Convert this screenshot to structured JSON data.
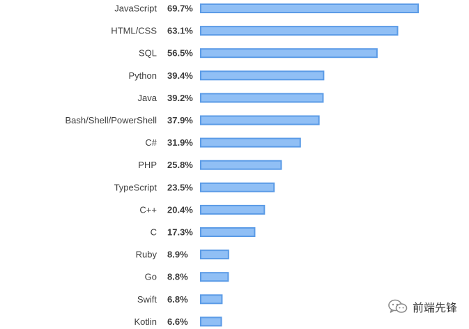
{
  "chart_data": {
    "type": "bar",
    "orientation": "horizontal",
    "categories": [
      "JavaScript",
      "HTML/CSS",
      "SQL",
      "Python",
      "Java",
      "Bash/Shell/PowerShell",
      "C#",
      "PHP",
      "TypeScript",
      "C++",
      "C",
      "Ruby",
      "Go",
      "Swift",
      "Kotlin"
    ],
    "values": [
      69.7,
      63.1,
      56.5,
      39.4,
      39.2,
      37.9,
      31.9,
      25.8,
      23.5,
      20.4,
      17.3,
      8.9,
      8.8,
      6.8,
      6.6
    ],
    "value_labels": [
      "69.7%",
      "63.1%",
      "56.5%",
      "39.4%",
      "39.2%",
      "37.9%",
      "31.9%",
      "25.8%",
      "23.5%",
      "20.4%",
      "17.3%",
      "8.9%",
      "8.8%",
      "6.8%",
      "6.6%"
    ],
    "title": "",
    "xlabel": "",
    "ylabel": "",
    "xlim": [
      0,
      100
    ],
    "grid": false,
    "colors": {
      "bar_fill": "#90bff5",
      "bar_stroke": "#5b9be6",
      "text": "#3c3c3c"
    }
  },
  "watermark": {
    "icon": "wechat-icon",
    "text": "前端先锋"
  }
}
